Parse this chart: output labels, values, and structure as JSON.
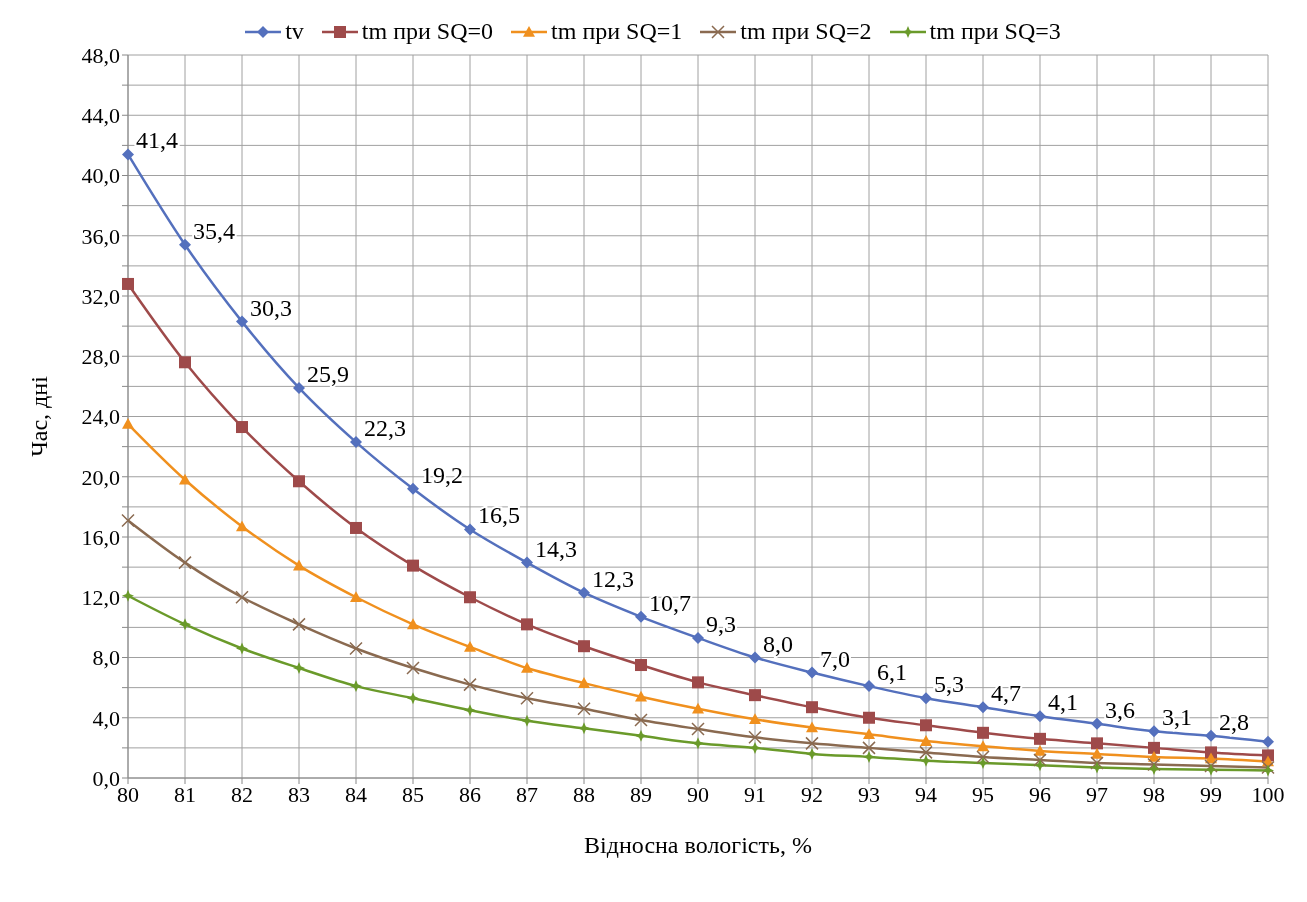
{
  "chart_data": {
    "type": "line",
    "xlabel": "Відносна вологість, %",
    "ylabel": "Час, дні",
    "categories": [
      "80",
      "81",
      "82",
      "83",
      "84",
      "85",
      "86",
      "87",
      "88",
      "89",
      "90",
      "91",
      "92",
      "93",
      "94",
      "95",
      "96",
      "97",
      "98",
      "99",
      "100"
    ],
    "series": [
      {
        "name": "tv",
        "color": "#5470bd",
        "marker": "diamond",
        "values": [
          41.4,
          35.4,
          30.3,
          25.9,
          22.3,
          19.2,
          16.5,
          14.3,
          12.3,
          10.7,
          9.3,
          8.0,
          7.0,
          6.1,
          5.3,
          4.7,
          4.1,
          3.6,
          3.1,
          2.8,
          2.4
        ],
        "value_labels": [
          "41,4",
          "35,4",
          "30,3",
          "25,9",
          "22,3",
          "19,2",
          "16,5",
          "14,3",
          "12,3",
          "10,7",
          "9,3",
          "8,0",
          "7,0",
          "6,1",
          "5,3",
          "4,7",
          "4,1",
          "3,6",
          "3,1",
          "2,8",
          null
        ]
      },
      {
        "name": "tm при SQ=0",
        "color": "#9e4a4a",
        "marker": "square",
        "values": [
          32.8,
          27.6,
          23.3,
          19.7,
          16.6,
          14.1,
          12.0,
          10.2,
          8.75,
          7.5,
          6.35,
          5.5,
          4.7,
          4.0,
          3.5,
          3.0,
          2.6,
          2.3,
          2.0,
          1.7,
          1.5
        ]
      },
      {
        "name": "tm при SQ=1",
        "color": "#f0901e",
        "marker": "triangle",
        "values": [
          23.5,
          19.8,
          16.7,
          14.1,
          12.0,
          10.2,
          8.7,
          7.3,
          6.3,
          5.4,
          4.6,
          3.9,
          3.35,
          2.9,
          2.45,
          2.1,
          1.8,
          1.6,
          1.4,
          1.3,
          1.1
        ]
      },
      {
        "name": "tm при SQ=2",
        "color": "#8a6a50",
        "marker": "cross",
        "values": [
          17.1,
          14.3,
          12.0,
          10.2,
          8.6,
          7.3,
          6.2,
          5.3,
          4.6,
          3.85,
          3.25,
          2.7,
          2.3,
          2.0,
          1.7,
          1.4,
          1.2,
          1.0,
          0.9,
          0.8,
          0.7
        ]
      },
      {
        "name": "tm при SQ=3",
        "color": "#6a9a2a",
        "marker": "star",
        "values": [
          12.1,
          10.2,
          8.6,
          7.3,
          6.1,
          5.3,
          4.5,
          3.8,
          3.3,
          2.8,
          2.3,
          2.0,
          1.6,
          1.4,
          1.15,
          1.0,
          0.85,
          0.7,
          0.6,
          0.55,
          0.5
        ]
      }
    ],
    "ylim": [
      0,
      48
    ],
    "yticks": [
      {
        "value": 0,
        "label": "0,0"
      },
      {
        "value": 2,
        "label": null
      },
      {
        "value": 4,
        "label": "4,0"
      },
      {
        "value": 6,
        "label": null
      },
      {
        "value": 8,
        "label": "8,0"
      },
      {
        "value": 10,
        "label": null
      },
      {
        "value": 12,
        "label": "12,0"
      },
      {
        "value": 14,
        "label": null
      },
      {
        "value": 16,
        "label": "16,0"
      },
      {
        "value": 18,
        "label": null
      },
      {
        "value": 20,
        "label": "20,0"
      },
      {
        "value": 22,
        "label": null
      },
      {
        "value": 24,
        "label": "24,0"
      },
      {
        "value": 26,
        "label": null
      },
      {
        "value": 28,
        "label": "28,0"
      },
      {
        "value": 30,
        "label": null
      },
      {
        "value": 32,
        "label": "32,0"
      },
      {
        "value": 34,
        "label": null
      },
      {
        "value": 36,
        "label": "36,0"
      },
      {
        "value": 38,
        "label": null
      },
      {
        "value": 40,
        "label": "40,0"
      },
      {
        "value": 42,
        "label": null
      },
      {
        "value": 44,
        "label": "44,0"
      },
      {
        "value": 46,
        "label": null
      },
      {
        "value": 48,
        "label": "48,0"
      }
    ],
    "grid": true,
    "legend": "top",
    "line_style": "solid"
  }
}
